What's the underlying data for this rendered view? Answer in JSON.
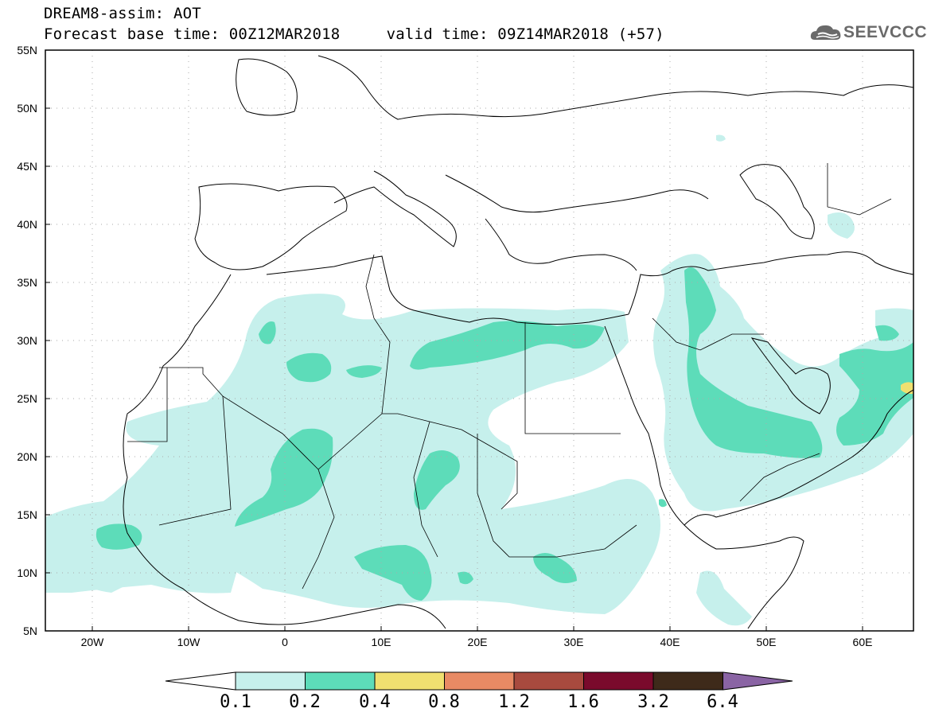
{
  "header": {
    "title_line1": "DREAM8-assim: AOT",
    "title_line2": "Forecast base time: 00Z12MAR2018     valid time: 09Z14MAR2018 (+57)",
    "logo_text": "SEEVCCC"
  },
  "map": {
    "lat_labels": [
      "55N",
      "50N",
      "45N",
      "40N",
      "35N",
      "30N",
      "25N",
      "20N",
      "15N",
      "10N",
      "5N"
    ],
    "lon_labels": [
      "20W",
      "10W",
      "0",
      "10E",
      "20E",
      "30E",
      "40E",
      "50E",
      "60E"
    ],
    "domain": {
      "lon_range": [
        -25,
        65
      ],
      "lat_range": [
        5,
        55
      ]
    },
    "field": "AOT"
  },
  "colorbar": {
    "labels": [
      "0.1",
      "0.2",
      "0.4",
      "0.8",
      "1.2",
      "1.6",
      "3.2",
      "6.4"
    ],
    "colors": [
      "#ffffff",
      "#c6f0ec",
      "#5ddcb9",
      "#f0e070",
      "#e88a64",
      "#a84a3e",
      "#7a0a2c",
      "#3e2a1a",
      "#8a64a4"
    ]
  }
}
